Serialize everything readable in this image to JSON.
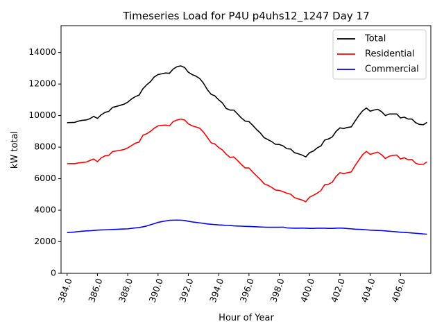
{
  "chart_data": {
    "type": "line",
    "title": "Timeseries Load for P4U p4uhs12_1247  Day 17",
    "xlabel": "Hour of Year",
    "ylabel": "kW total",
    "xlim": [
      383.6,
      408.0
    ],
    "ylim": [
      0,
      15700
    ],
    "xticks": [
      384,
      386,
      388,
      390,
      392,
      394,
      396,
      398,
      400,
      402,
      404,
      406
    ],
    "xtick_labels": [
      "384.0",
      "386.0",
      "388.0",
      "390.0",
      "392.0",
      "394.0",
      "396.0",
      "398.0",
      "400.0",
      "402.0",
      "404.0",
      "406.0"
    ],
    "yticks": [
      0,
      2000,
      4000,
      6000,
      8000,
      10000,
      12000,
      14000
    ],
    "ytick_labels": [
      "0",
      "2000",
      "4000",
      "6000",
      "8000",
      "10000",
      "12000",
      "14000"
    ],
    "grid": false,
    "legend_position": "top-right",
    "x": [
      384.0,
      384.25,
      384.5,
      384.75,
      385.0,
      385.25,
      385.5,
      385.75,
      386.0,
      386.25,
      386.5,
      386.75,
      387.0,
      387.25,
      387.5,
      387.75,
      388.0,
      388.25,
      388.5,
      388.75,
      389.0,
      389.25,
      389.5,
      389.75,
      390.0,
      390.25,
      390.5,
      390.75,
      391.0,
      391.25,
      391.5,
      391.75,
      392.0,
      392.25,
      392.5,
      392.75,
      393.0,
      393.25,
      393.5,
      393.75,
      394.0,
      394.25,
      394.5,
      394.75,
      395.0,
      395.25,
      395.5,
      395.75,
      396.0,
      396.25,
      396.5,
      396.75,
      397.0,
      397.25,
      397.5,
      397.75,
      398.0,
      398.25,
      398.5,
      398.75,
      399.0,
      399.25,
      399.5,
      399.75,
      400.0,
      400.25,
      400.5,
      400.75,
      401.0,
      401.25,
      401.5,
      401.75,
      402.0,
      402.25,
      402.5,
      402.75,
      403.0,
      403.25,
      403.5,
      403.75,
      404.0,
      404.25,
      404.5,
      404.75,
      405.0,
      405.25,
      405.5,
      405.75,
      406.0,
      406.25,
      406.5,
      406.75,
      407.0,
      407.25,
      407.5,
      407.75
    ],
    "series": [
      {
        "name": "Total",
        "color": "#000000",
        "values": [
          9550,
          9560,
          9570,
          9650,
          9700,
          9720,
          9800,
          9950,
          9820,
          10050,
          10200,
          10270,
          10520,
          10580,
          10650,
          10720,
          10850,
          11050,
          11200,
          11300,
          11700,
          11950,
          12150,
          12450,
          12600,
          12650,
          12700,
          12680,
          12950,
          13100,
          13150,
          13050,
          12750,
          12600,
          12500,
          12350,
          12050,
          11650,
          11350,
          11250,
          11000,
          10800,
          10450,
          10350,
          10350,
          10100,
          9850,
          9650,
          9620,
          9380,
          9120,
          8900,
          8600,
          8480,
          8350,
          8180,
          8170,
          8080,
          7900,
          7880,
          7650,
          7580,
          7500,
          7380,
          7650,
          7750,
          7950,
          8080,
          8450,
          8520,
          8650,
          9000,
          9220,
          9180,
          9250,
          9280,
          9650,
          10000,
          10300,
          10480,
          10280,
          10350,
          10400,
          10250,
          10000,
          10100,
          10100,
          10100,
          9850,
          9900,
          9780,
          9780,
          9550,
          9440,
          9420,
          9570
        ]
      },
      {
        "name": "Residential",
        "color": "#ff0000",
        "values": [
          6950,
          6960,
          6950,
          7000,
          7030,
          7050,
          7150,
          7250,
          7080,
          7320,
          7450,
          7480,
          7720,
          7760,
          7800,
          7850,
          7950,
          8100,
          8250,
          8320,
          8750,
          8850,
          9000,
          9200,
          9350,
          9380,
          9400,
          9350,
          9620,
          9720,
          9780,
          9720,
          9480,
          9350,
          9280,
          9200,
          8950,
          8620,
          8280,
          8200,
          7980,
          7820,
          7550,
          7350,
          7380,
          7150,
          6900,
          6680,
          6680,
          6420,
          6180,
          5950,
          5680,
          5580,
          5450,
          5280,
          5260,
          5180,
          5080,
          5020,
          4800,
          4720,
          4650,
          4540,
          4830,
          4950,
          5080,
          5250,
          5620,
          5650,
          5780,
          6150,
          6380,
          6320,
          6380,
          6430,
          6830,
          7180,
          7520,
          7730,
          7540,
          7620,
          7680,
          7520,
          7280,
          7420,
          7480,
          7500,
          7250,
          7330,
          7200,
          7220,
          6980,
          6900,
          6910,
          7070
        ]
      },
      {
        "name": "Commercial",
        "color": "#0000ff",
        "values": [
          2580,
          2600,
          2620,
          2650,
          2670,
          2690,
          2700,
          2720,
          2740,
          2750,
          2760,
          2770,
          2780,
          2790,
          2800,
          2810,
          2820,
          2850,
          2880,
          2900,
          2950,
          3000,
          3080,
          3150,
          3230,
          3280,
          3320,
          3360,
          3370,
          3375,
          3370,
          3350,
          3300,
          3260,
          3230,
          3200,
          3170,
          3130,
          3110,
          3090,
          3070,
          3060,
          3040,
          3030,
          3010,
          3000,
          2990,
          2980,
          2970,
          2960,
          2950,
          2940,
          2930,
          2920,
          2920,
          2920,
          2920,
          2930,
          2880,
          2870,
          2860,
          2860,
          2870,
          2860,
          2850,
          2850,
          2860,
          2860,
          2860,
          2850,
          2850,
          2860,
          2870,
          2860,
          2840,
          2820,
          2800,
          2790,
          2780,
          2760,
          2740,
          2730,
          2720,
          2710,
          2690,
          2670,
          2650,
          2630,
          2610,
          2590,
          2580,
          2560,
          2540,
          2520,
          2500,
          2480
        ]
      }
    ]
  }
}
